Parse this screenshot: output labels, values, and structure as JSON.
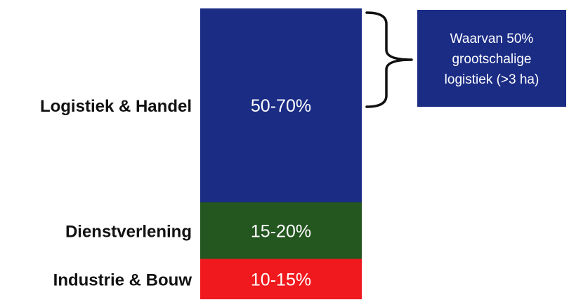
{
  "chart_data": {
    "type": "bar",
    "stacked": true,
    "segments": [
      {
        "category": "Industrie & Bouw",
        "value_label": "10-15%",
        "range": [
          10,
          15
        ],
        "color": "#f0191e"
      },
      {
        "category": "Dienstverlening",
        "value_label": "15-20%",
        "range": [
          15,
          20
        ],
        "color": "#245620"
      },
      {
        "category": "Logistiek & Handel",
        "value_label": "50-70%",
        "range": [
          50,
          70
        ],
        "color": "#1b2c85"
      }
    ],
    "annotation": {
      "text_lines": [
        "Waarvan 50%",
        "grootschalige",
        "logistiek (>3 ha)"
      ],
      "applies_to": "Logistiek & Handel",
      "box_color": "#1b2c85"
    }
  }
}
